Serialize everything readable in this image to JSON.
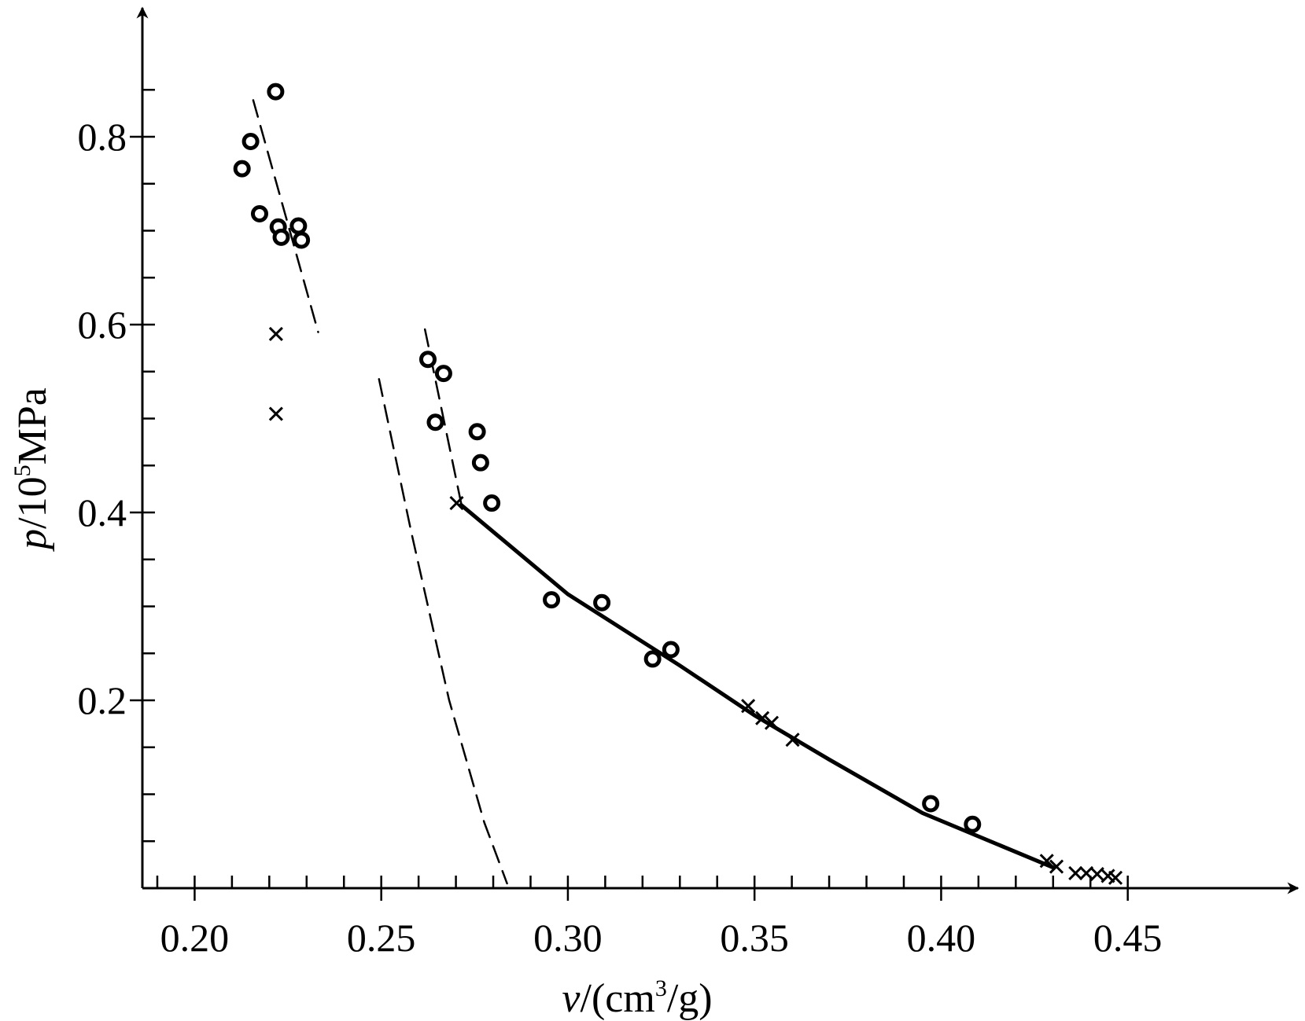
{
  "chart_data": {
    "type": "scatter",
    "title": "",
    "xlabel": {
      "symbol": "v",
      "prefix": "/(cm",
      "sup": "3",
      "suffix": "/g)"
    },
    "ylabel": {
      "symbol": "p",
      "prefix": "/10",
      "sup": "5",
      "suffix": "MPa"
    },
    "xlim": [
      0.186,
      0.49
    ],
    "ylim": [
      0,
      0.9
    ],
    "x_major_ticks": [
      0.2,
      0.25,
      0.3,
      0.35,
      0.4,
      0.45
    ],
    "x_tick_labels": [
      "0.20",
      "0.25",
      "0.30",
      "0.35",
      "0.40",
      "0.45"
    ],
    "x_minor_step": 0.01,
    "y_major_ticks": [
      0.2,
      0.4,
      0.6,
      0.8
    ],
    "y_tick_labels": [
      "0.2",
      "0.4",
      "0.6",
      "0.8"
    ],
    "y_minor_step": 0.05,
    "grid": false,
    "series": [
      {
        "marker": "circle",
        "points": [
          [
            0.2217,
            0.848
          ],
          [
            0.215,
            0.795
          ],
          [
            0.2127,
            0.766
          ],
          [
            0.2174,
            0.718
          ],
          [
            0.2224,
            0.704
          ],
          [
            0.2232,
            0.693
          ],
          [
            0.2278,
            0.705
          ],
          [
            0.2286,
            0.69
          ],
          [
            0.2625,
            0.563
          ],
          [
            0.2667,
            0.548
          ],
          [
            0.2645,
            0.496
          ],
          [
            0.2757,
            0.486
          ],
          [
            0.2766,
            0.453
          ],
          [
            0.2796,
            0.41
          ],
          [
            0.2956,
            0.307
          ],
          [
            0.3091,
            0.304
          ],
          [
            0.3227,
            0.244
          ],
          [
            0.3276,
            0.254
          ],
          [
            0.3972,
            0.09
          ],
          [
            0.4084,
            0.068
          ]
        ]
      },
      {
        "marker": "cross",
        "points": [
          [
            0.2218,
            0.59
          ],
          [
            0.2218,
            0.505
          ],
          [
            0.2702,
            0.41
          ],
          [
            0.3483,
            0.194
          ],
          [
            0.3521,
            0.181
          ],
          [
            0.3546,
            0.176
          ],
          [
            0.3602,
            0.158
          ],
          [
            0.4283,
            0.029
          ],
          [
            0.4309,
            0.023
          ],
          [
            0.436,
            0.016
          ],
          [
            0.4389,
            0.016
          ],
          [
            0.4418,
            0.015
          ],
          [
            0.4447,
            0.013
          ],
          [
            0.4467,
            0.011
          ]
        ]
      }
    ],
    "lines": [
      {
        "style": "dashed",
        "points": [
          [
            0.2157,
            0.839
          ],
          [
            0.2331,
            0.592
          ]
        ]
      },
      {
        "style": "dashed",
        "points": [
          [
            0.2617,
            0.595
          ],
          [
            0.2714,
            0.41
          ]
        ]
      },
      {
        "style": "dashed",
        "points": [
          [
            0.2494,
            0.542
          ],
          [
            0.258,
            0.38
          ],
          [
            0.2682,
            0.2
          ],
          [
            0.2776,
            0.07
          ],
          [
            0.2837,
            0.005
          ]
        ]
      },
      {
        "style": "solid",
        "points": [
          [
            0.2714,
            0.408
          ],
          [
            0.3,
            0.313
          ],
          [
            0.33,
            0.237
          ],
          [
            0.35,
            0.184
          ],
          [
            0.37,
            0.137
          ],
          [
            0.395,
            0.08
          ],
          [
            0.43,
            0.022
          ]
        ]
      }
    ]
  }
}
